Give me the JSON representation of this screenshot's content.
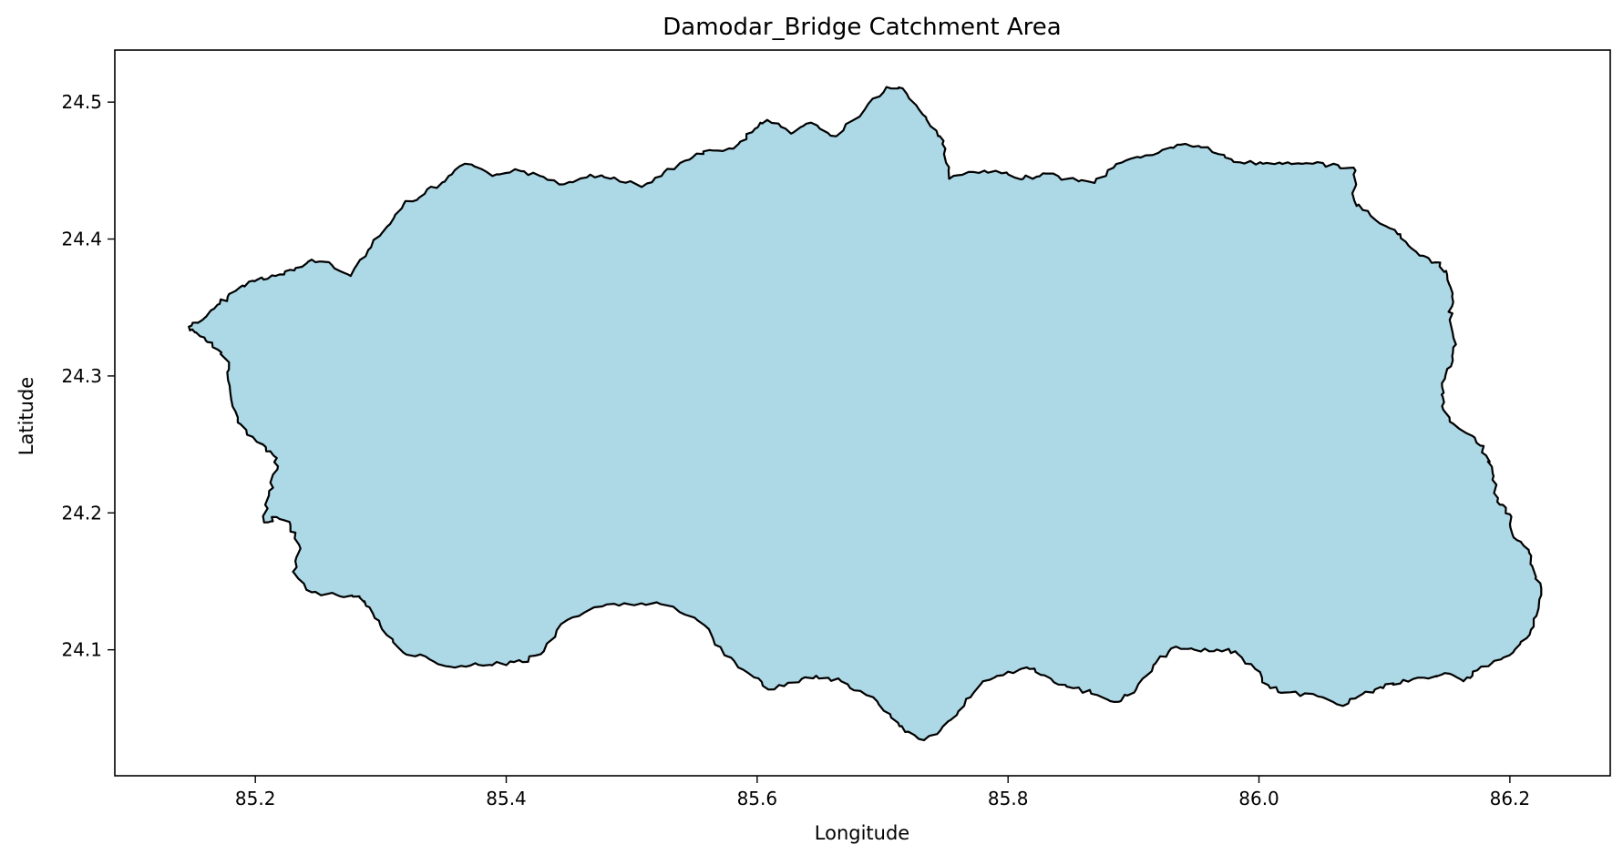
{
  "chart_data": {
    "type": "map",
    "title": "Damodar_Bridge Catchment Area",
    "xlabel": "Longitude",
    "ylabel": "Latitude",
    "xlim": [
      85.088,
      86.28
    ],
    "ylim": [
      24.008,
      24.538
    ],
    "xticks": [
      85.2,
      85.4,
      85.6,
      85.8,
      86.0,
      86.2
    ],
    "xtick_labels": [
      "85.2",
      "85.4",
      "85.6",
      "85.8",
      "86.0",
      "86.2"
    ],
    "yticks": [
      24.1,
      24.2,
      24.3,
      24.4,
      24.5
    ],
    "ytick_labels": [
      "24.1",
      "24.2",
      "24.3",
      "24.4",
      "24.5"
    ],
    "fill_color": "#add8e6",
    "edge_color": "#000000",
    "grid": false,
    "boundary": [
      [
        85.147,
        24.336
      ],
      [
        85.158,
        24.341
      ],
      [
        85.167,
        24.349
      ],
      [
        85.178,
        24.358
      ],
      [
        85.19,
        24.366
      ],
      [
        85.203,
        24.371
      ],
      [
        85.216,
        24.373
      ],
      [
        85.231,
        24.377
      ],
      [
        85.245,
        24.385
      ],
      [
        85.261,
        24.381
      ],
      [
        85.276,
        24.373
      ],
      [
        85.29,
        24.392
      ],
      [
        85.305,
        24.409
      ],
      [
        85.318,
        24.425
      ],
      [
        85.335,
        24.433
      ],
      [
        85.351,
        24.442
      ],
      [
        85.367,
        24.455
      ],
      [
        85.389,
        24.446
      ],
      [
        85.407,
        24.451
      ],
      [
        85.427,
        24.446
      ],
      [
        85.446,
        24.44
      ],
      [
        85.467,
        24.447
      ],
      [
        85.486,
        24.445
      ],
      [
        85.508,
        24.438
      ],
      [
        85.526,
        24.449
      ],
      [
        85.546,
        24.458
      ],
      [
        85.562,
        24.465
      ],
      [
        85.581,
        24.466
      ],
      [
        85.596,
        24.478
      ],
      [
        85.608,
        24.487
      ],
      [
        85.627,
        24.477
      ],
      [
        85.643,
        24.485
      ],
      [
        85.663,
        24.475
      ],
      [
        85.686,
        24.495
      ],
      [
        85.703,
        24.511
      ],
      [
        85.716,
        24.51
      ],
      [
        85.732,
        24.491
      ],
      [
        85.743,
        24.479
      ],
      [
        85.75,
        24.466
      ],
      [
        85.753,
        24.444
      ],
      [
        85.772,
        24.449
      ],
      [
        85.795,
        24.448
      ],
      [
        85.812,
        24.444
      ],
      [
        85.828,
        24.448
      ],
      [
        85.847,
        24.444
      ],
      [
        85.869,
        24.441
      ],
      [
        85.884,
        24.452
      ],
      [
        85.903,
        24.46
      ],
      [
        85.92,
        24.463
      ],
      [
        85.935,
        24.469
      ],
      [
        85.952,
        24.468
      ],
      [
        85.968,
        24.462
      ],
      [
        85.985,
        24.456
      ],
      [
        86.003,
        24.455
      ],
      [
        86.023,
        24.456
      ],
      [
        86.043,
        24.455
      ],
      [
        86.063,
        24.454
      ],
      [
        86.077,
        24.45
      ],
      [
        86.076,
        24.428
      ],
      [
        86.089,
        24.417
      ],
      [
        86.104,
        24.408
      ],
      [
        86.117,
        24.398
      ],
      [
        86.128,
        24.388
      ],
      [
        86.141,
        24.383
      ],
      [
        86.15,
        24.374
      ],
      [
        86.154,
        24.358
      ],
      [
        86.152,
        24.341
      ],
      [
        86.157,
        24.323
      ],
      [
        86.153,
        24.307
      ],
      [
        86.146,
        24.292
      ],
      [
        86.146,
        24.278
      ],
      [
        86.155,
        24.265
      ],
      [
        86.172,
        24.255
      ],
      [
        86.181,
        24.242
      ],
      [
        86.187,
        24.227
      ],
      [
        86.19,
        24.208
      ],
      [
        86.2,
        24.199
      ],
      [
        86.203,
        24.182
      ],
      [
        86.215,
        24.173
      ],
      [
        86.219,
        24.158
      ],
      [
        86.225,
        24.14
      ],
      [
        86.219,
        24.117
      ],
      [
        86.208,
        24.104
      ],
      [
        86.193,
        24.093
      ],
      [
        86.174,
        24.085
      ],
      [
        86.163,
        24.077
      ],
      [
        86.148,
        24.083
      ],
      [
        86.135,
        24.079
      ],
      [
        86.115,
        24.078
      ],
      [
        86.099,
        24.072
      ],
      [
        86.083,
        24.068
      ],
      [
        86.067,
        24.059
      ],
      [
        86.047,
        24.066
      ],
      [
        86.025,
        24.069
      ],
      [
        86.009,
        24.072
      ],
      [
        85.997,
        24.086
      ],
      [
        85.981,
        24.099
      ],
      [
        85.964,
        24.099
      ],
      [
        85.946,
        24.101
      ],
      [
        85.93,
        24.101
      ],
      [
        85.916,
        24.089
      ],
      [
        85.902,
        24.071
      ],
      [
        85.888,
        24.062
      ],
      [
        85.871,
        24.067
      ],
      [
        85.852,
        24.072
      ],
      [
        85.834,
        24.079
      ],
      [
        85.817,
        24.086
      ],
      [
        85.8,
        24.084
      ],
      [
        85.78,
        24.077
      ],
      [
        85.765,
        24.059
      ],
      [
        85.748,
        24.044
      ],
      [
        85.733,
        24.034
      ],
      [
        85.718,
        24.04
      ],
      [
        85.706,
        24.053
      ],
      [
        85.687,
        24.067
      ],
      [
        85.667,
        24.077
      ],
      [
        85.647,
        24.081
      ],
      [
        85.628,
        24.076
      ],
      [
        85.609,
        24.071
      ],
      [
        85.593,
        24.083
      ],
      [
        85.574,
        24.096
      ],
      [
        85.558,
        24.118
      ],
      [
        85.535,
        24.13
      ],
      [
        85.517,
        24.134
      ],
      [
        85.494,
        24.134
      ],
      [
        85.47,
        24.131
      ],
      [
        85.449,
        24.122
      ],
      [
        85.43,
        24.099
      ],
      [
        85.413,
        24.091
      ],
      [
        85.396,
        24.09
      ],
      [
        85.378,
        24.089
      ],
      [
        85.359,
        24.087
      ],
      [
        85.339,
        24.093
      ],
      [
        85.318,
        24.098
      ],
      [
        85.301,
        24.115
      ],
      [
        85.291,
        24.131
      ],
      [
        85.283,
        24.139
      ],
      [
        85.265,
        24.14
      ],
      [
        85.245,
        24.142
      ],
      [
        85.23,
        24.157
      ],
      [
        85.236,
        24.174
      ],
      [
        85.228,
        24.191
      ],
      [
        85.216,
        24.197
      ],
      [
        85.207,
        24.193
      ],
      [
        85.211,
        24.216
      ],
      [
        85.218,
        24.234
      ],
      [
        85.212,
        24.245
      ],
      [
        85.201,
        24.252
      ],
      [
        85.186,
        24.266
      ],
      [
        85.18,
        24.288
      ],
      [
        85.179,
        24.31
      ],
      [
        85.166,
        24.321
      ],
      [
        85.156,
        24.329
      ],
      [
        85.147,
        24.336
      ]
    ]
  }
}
